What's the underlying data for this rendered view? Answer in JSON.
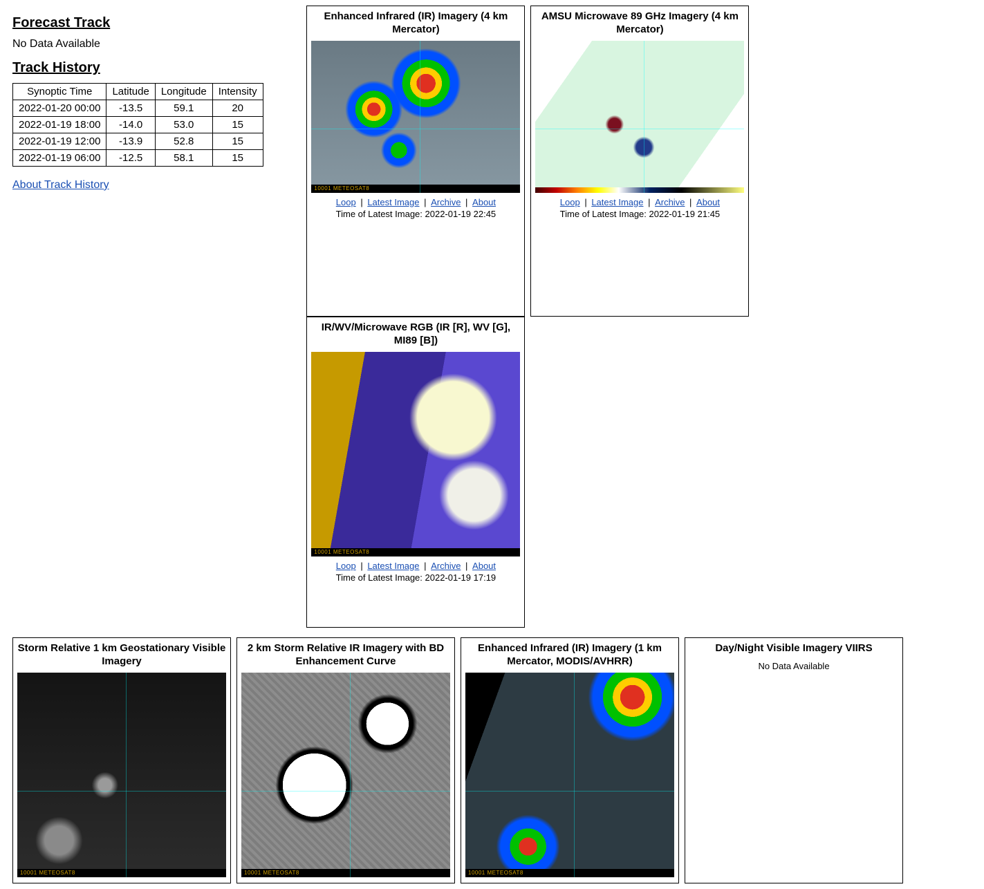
{
  "forecast": {
    "heading": "Forecast Track",
    "nodata": "No Data Available"
  },
  "history": {
    "heading": "Track History",
    "columns": [
      "Synoptic Time",
      "Latitude",
      "Longitude",
      "Intensity"
    ],
    "rows": [
      [
        "2022-01-20 00:00",
        "-13.5",
        "59.1",
        "20"
      ],
      [
        "2022-01-19 18:00",
        "-14.0",
        "53.0",
        "15"
      ],
      [
        "2022-01-19 12:00",
        "-13.9",
        "52.8",
        "15"
      ],
      [
        "2022-01-19 06:00",
        "-12.5",
        "58.1",
        "15"
      ]
    ],
    "about_link": "About Track History"
  },
  "link_labels": {
    "loop": "Loop",
    "latest": "Latest Image",
    "archive": "Archive",
    "about": "About"
  },
  "time_prefix": "Time of Latest Image: ",
  "panels_row1": [
    {
      "title": "Enhanced Infrared (IR) Imagery (4 km Mercator)",
      "img_class": "img-ir crosshair",
      "img_height": "short",
      "strip": "bar",
      "latest_time": "2022-01-19 22:45",
      "has_links": true
    },
    {
      "title": "AMSU Microwave 89 GHz Imagery (4 km Mercator)",
      "img_class": "img-amsu crosshair",
      "img_height": "short",
      "strip": "color",
      "latest_time": "2022-01-19 21:45",
      "has_links": true
    },
    {
      "title": "IR/WV/Microwave RGB (IR [R], WV [G], MI89 [B])",
      "img_class": "img-rgb",
      "img_height": "tall",
      "strip": "bar",
      "latest_time": "2022-01-19 17:19",
      "has_links": true
    }
  ],
  "panels_row2": [
    {
      "title": "Storm Relative 1 km Geostationary Visible Imagery",
      "img_class": "img-vis crosshair",
      "strip": "bar",
      "has_links": false
    },
    {
      "title": "2 km Storm Relative IR Imagery with BD Enhancement Curve",
      "img_class": "img-bd crosshair",
      "strip": "bar",
      "has_links": false
    },
    {
      "title": "Enhanced Infrared (IR) Imagery (1 km Mercator, MODIS/AVHRR)",
      "img_class": "img-ir2 crosshair",
      "strip": "bar",
      "has_links": false
    },
    {
      "title": "Day/Night Visible Imagery VIIRS",
      "nodata": "No Data Available",
      "has_links": false
    }
  ]
}
